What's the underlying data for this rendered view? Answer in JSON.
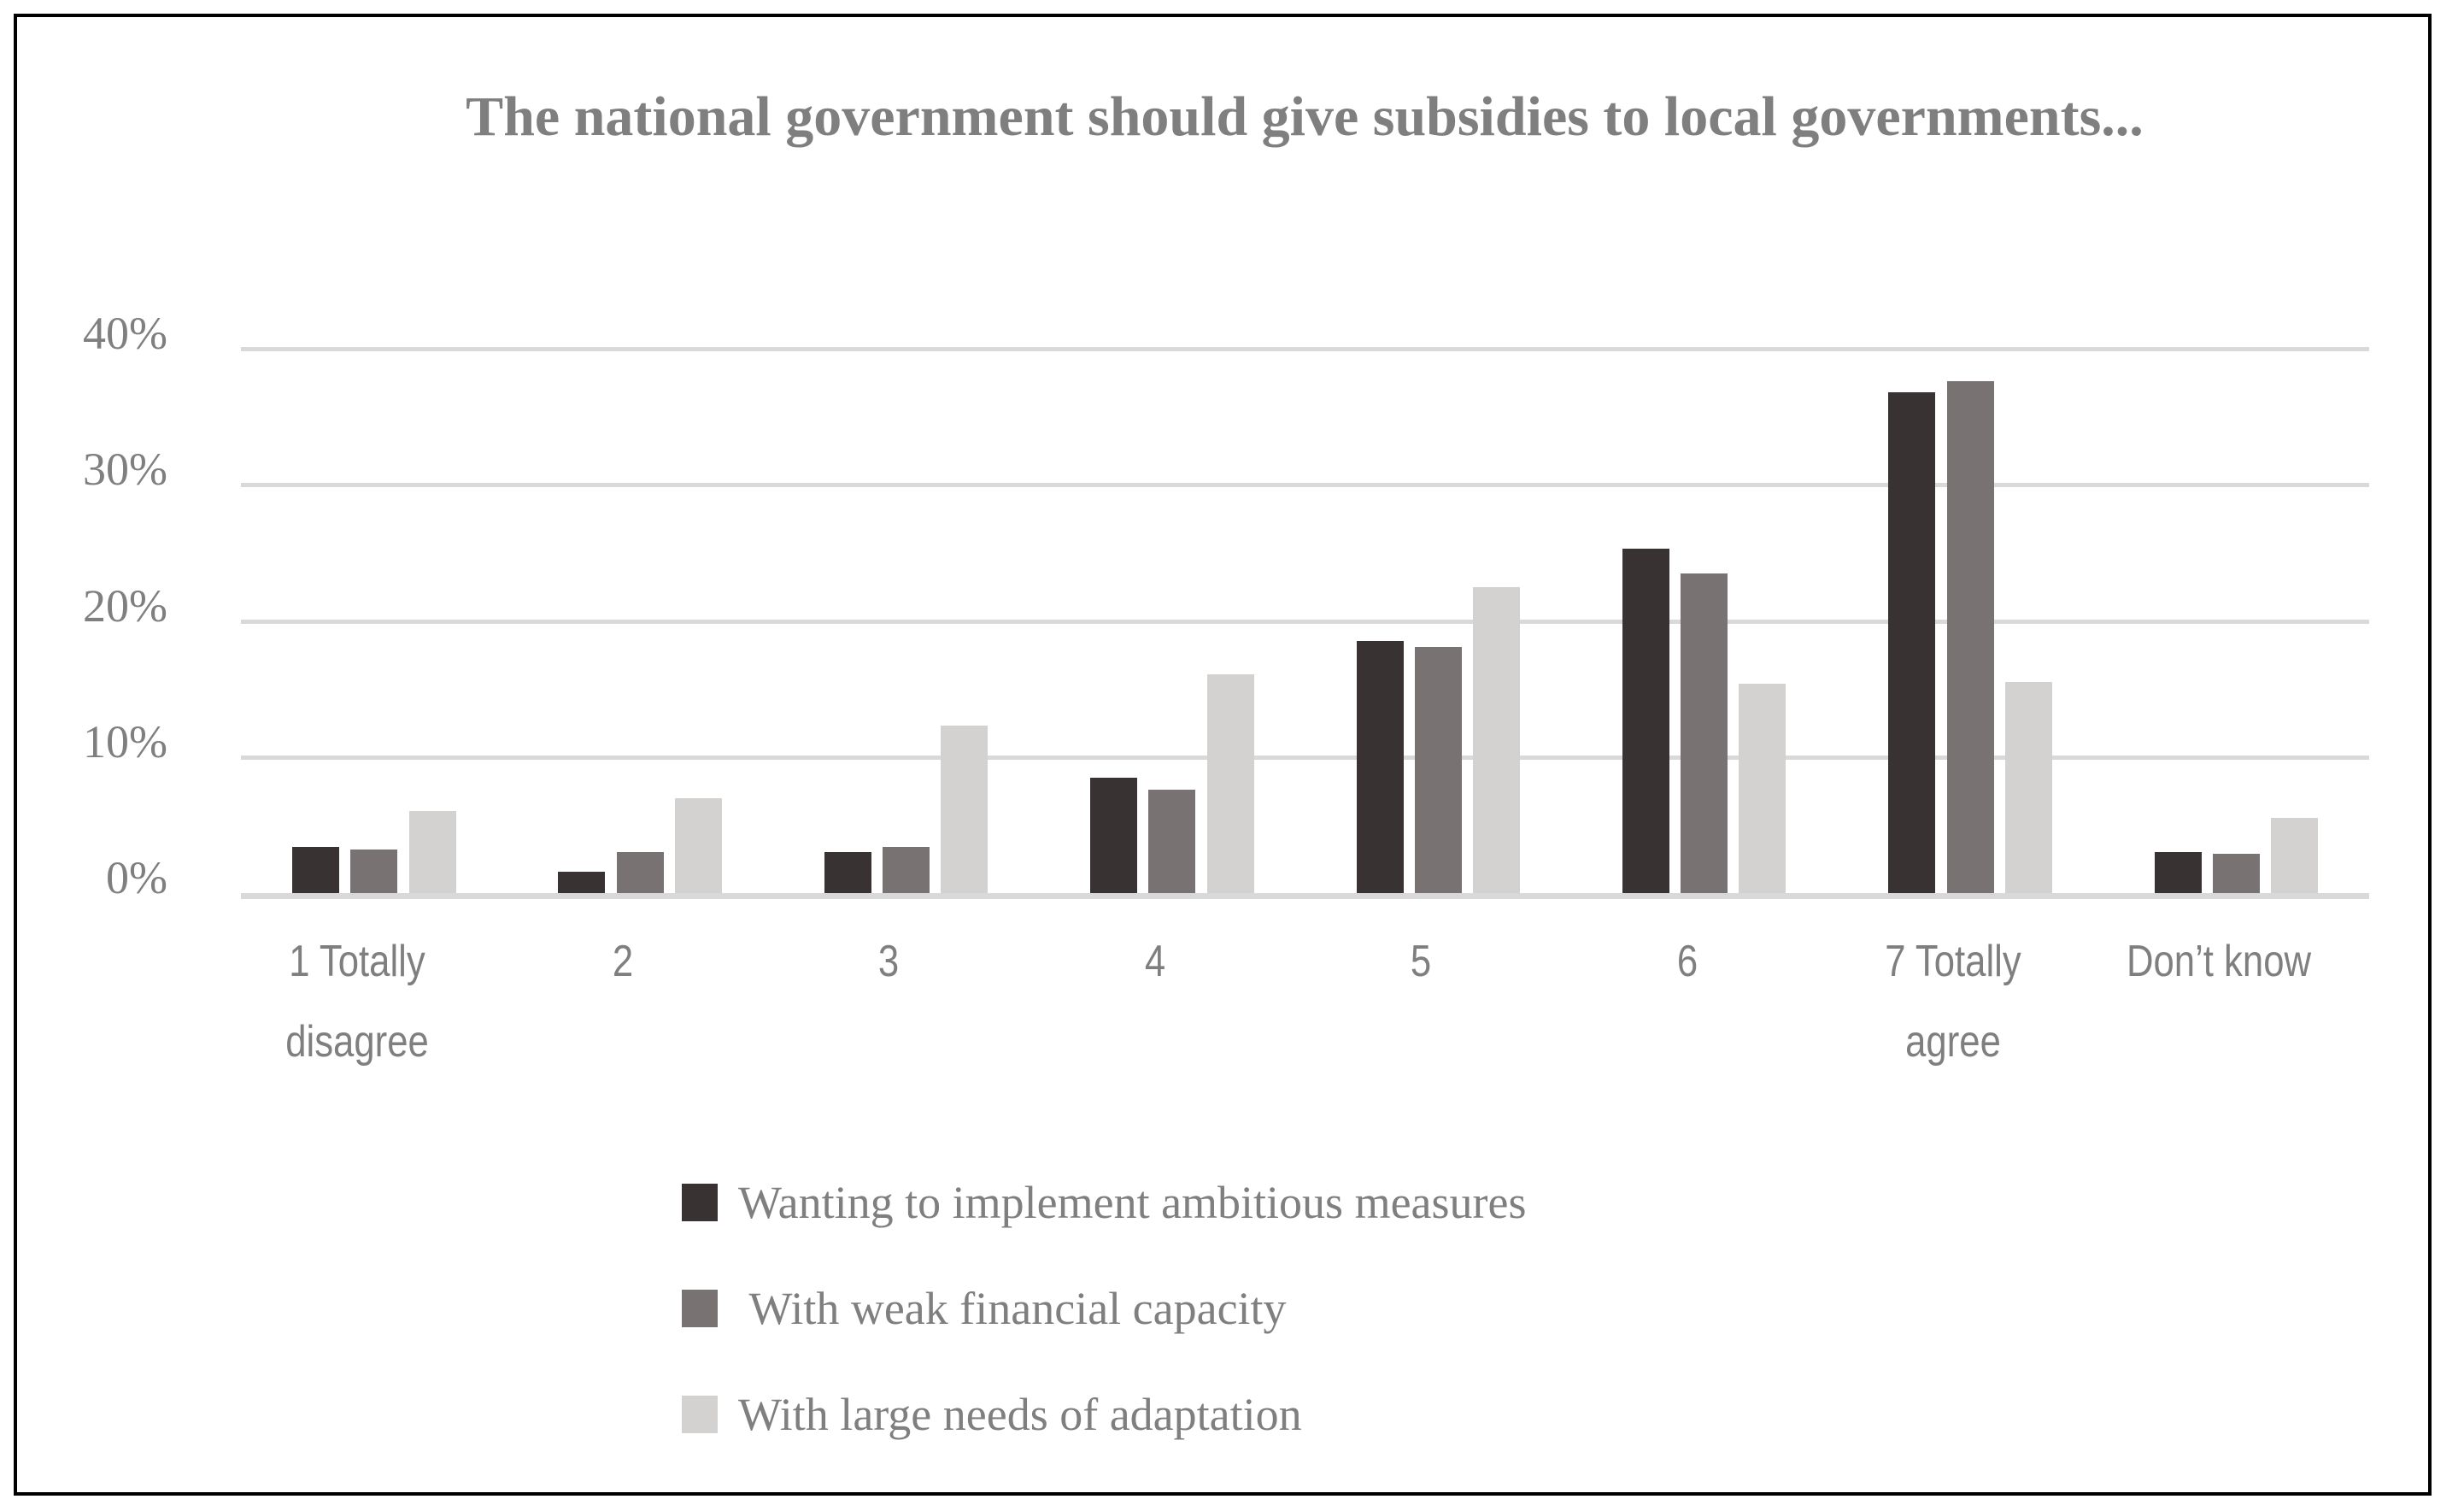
{
  "chart_data": {
    "type": "bar",
    "title": "The national government should give subsidies to local governments...",
    "categories": [
      "1 Totally disagree",
      "2",
      "3",
      "4",
      "5",
      "6",
      "7 Totally agree",
      "Don’t know"
    ],
    "series": [
      {
        "name": "Wanting to implement ambitious measures",
        "color": "#383233",
        "values": [
          3.4,
          1.6,
          3.0,
          8.5,
          18.5,
          25.3,
          36.8,
          3.0
        ]
      },
      {
        "name": " With weak financial capacity",
        "color": "#797273",
        "values": [
          3.2,
          3.0,
          3.4,
          7.6,
          18.1,
          23.5,
          37.6,
          2.9
        ]
      },
      {
        "name": "With large needs of adaptation",
        "color": "#d3d2d0",
        "values": [
          6.0,
          7.0,
          12.3,
          16.1,
          22.5,
          15.4,
          15.5,
          5.5
        ]
      }
    ],
    "yticks": [
      {
        "label": "40%",
        "value": 40
      },
      {
        "label": "30%",
        "value": 30
      },
      {
        "label": "20%",
        "value": 20
      },
      {
        "label": "10%",
        "value": 10
      },
      {
        "label": "0%",
        "value": 0
      }
    ],
    "ylim": [
      0,
      42
    ],
    "unit": "%",
    "grid": "horizontal",
    "legend_position": "bottom-left"
  },
  "colors": {
    "frame_border": "#000000",
    "gridline": "#d9d9d9",
    "axis_line": "#d9d9d9",
    "text_gray": "#7f7f7f"
  }
}
